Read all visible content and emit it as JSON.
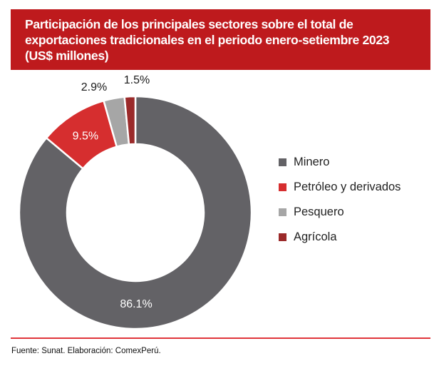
{
  "chart_data": {
    "type": "pie",
    "variant": "donut",
    "title": "Participación de los principales sectores sobre el total de exportaciones tradicionales en el periodo enero-setiembre 2023 (US$ millones)",
    "title_lines": [
      "Participación de los principales sectores sobre el total de",
      "exportaciones tradicionales en el periodo enero-setiembre 2023",
      "(US$ millones)"
    ],
    "unit": "%",
    "start": "top",
    "direction": "clockwise",
    "slices": [
      {
        "name": "Minero",
        "value": 86.1,
        "label": "86.1%",
        "color": "#636266",
        "label_color": "#ffffff",
        "label_position": "inside"
      },
      {
        "name": "Petróleo y derivados",
        "value": 9.5,
        "label": "9.5%",
        "color": "#d62e2f",
        "label_color": "#ffffff",
        "label_position": "inside"
      },
      {
        "name": "Pesquero",
        "value": 2.9,
        "label": "2.9%",
        "color": "#a6a6a6",
        "label_color": "#1a1a1a",
        "label_position": "outside"
      },
      {
        "name": "Agrícola",
        "value": 1.5,
        "label": "1.5%",
        "color": "#9b2a2a",
        "label_color": "#1a1a1a",
        "label_position": "outside"
      }
    ],
    "legend_placement": "right",
    "source": "Fuente: Sunat. Elaboración: ComexPerú."
  },
  "colors": {
    "banner": "#be1a1d",
    "divider": "#e0343a"
  }
}
